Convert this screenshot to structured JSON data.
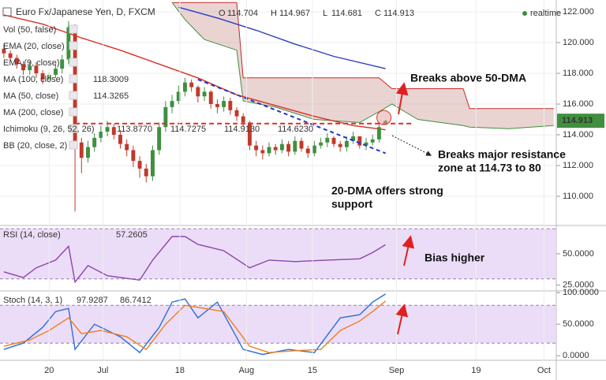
{
  "chart_data": [
    {
      "type": "candlestick",
      "title": "Euro Fx/Japanese Yen, D, FXCM",
      "status": "realtime",
      "ohlc_labels": [
        "O",
        "H",
        "L",
        "C"
      ],
      "xlim": [
        -0.6,
        85.4
      ],
      "ylim": [
        108.15,
        122.77
      ],
      "yticks": [
        {
          "value": 110,
          "label": "110.000"
        },
        {
          "value": 112,
          "label": "112.000"
        },
        {
          "value": 114,
          "label": "114.000"
        },
        {
          "value": 116,
          "label": "116.000"
        },
        {
          "value": 118,
          "label": "118.000"
        },
        {
          "value": 120,
          "label": "120.000"
        },
        {
          "value": 122,
          "label": "122.000"
        }
      ],
      "grid": true,
      "up_color": "#3f8f3f",
      "down_color": "#c0392b",
      "price_tag_color": "#3f8f3f",
      "open": [
        119.6,
        119.3,
        119.0,
        118.6,
        118.2,
        118.5,
        118.0,
        117.6,
        117.9,
        118.3,
        118.9,
        121.0,
        113.5,
        112.5,
        113.2,
        113.8,
        114.2,
        114.5,
        114.0,
        113.4,
        113.0,
        112.3,
        111.8,
        111.3,
        113.0,
        114.5,
        115.8,
        116.2,
        116.8,
        117.4,
        117.1,
        116.5,
        116.8,
        116.0,
        115.8,
        116.2,
        115.6,
        115.2,
        114.8,
        113.3,
        113.0,
        112.8,
        113.2,
        113.0,
        113.4,
        112.9,
        113.6,
        113.1,
        112.8,
        113.3,
        113.5,
        113.8,
        113.4,
        113.2,
        113.6,
        113.9,
        113.3,
        113.5,
        113.7,
        114.704
      ],
      "high": [
        119.9,
        119.5,
        119.2,
        118.8,
        118.8,
        118.7,
        118.2,
        118.1,
        118.6,
        119.2,
        121.4,
        121.2,
        113.8,
        113.6,
        114.1,
        114.6,
        114.9,
        114.7,
        114.3,
        113.7,
        113.3,
        112.6,
        112.1,
        113.3,
        114.8,
        116.2,
        116.6,
        117.2,
        117.7,
        117.6,
        117.2,
        117.1,
        116.9,
        116.3,
        116.5,
        116.4,
        115.8,
        115.4,
        114.9,
        113.6,
        113.3,
        113.5,
        113.4,
        113.7,
        113.6,
        113.9,
        113.8,
        113.3,
        113.6,
        113.8,
        114.1,
        113.9,
        113.6,
        113.9,
        114.2,
        113.9,
        113.8,
        114.0,
        114.7,
        114.967
      ],
      "low": [
        119.0,
        118.8,
        118.3,
        117.9,
        117.9,
        117.7,
        117.3,
        117.4,
        117.7,
        118.0,
        118.6,
        109.0,
        111.5,
        112.2,
        112.9,
        113.5,
        113.9,
        113.7,
        113.1,
        112.6,
        111.9,
        111.2,
        110.9,
        111.0,
        112.7,
        114.2,
        115.4,
        116.0,
        116.5,
        116.8,
        116.1,
        116.2,
        115.7,
        115.4,
        115.5,
        115.3,
        114.9,
        114.5,
        113.0,
        112.6,
        112.4,
        112.6,
        112.7,
        112.8,
        112.6,
        112.7,
        112.9,
        112.5,
        112.6,
        113.1,
        113.2,
        113.2,
        112.9,
        112.9,
        113.4,
        113.1,
        113.0,
        113.3,
        113.5,
        114.681
      ],
      "close": [
        119.3,
        119.0,
        118.6,
        118.2,
        118.5,
        118.0,
        117.6,
        117.9,
        118.3,
        118.9,
        121.0,
        113.5,
        112.5,
        113.2,
        113.8,
        114.2,
        114.5,
        114.0,
        113.4,
        113.0,
        112.3,
        111.8,
        111.3,
        113.0,
        114.5,
        115.8,
        116.2,
        116.8,
        117.4,
        117.1,
        116.5,
        116.8,
        116.0,
        115.8,
        116.2,
        115.6,
        115.2,
        114.8,
        113.3,
        113.0,
        112.8,
        113.2,
        113.0,
        113.4,
        112.9,
        113.6,
        113.1,
        112.8,
        113.3,
        113.5,
        113.8,
        113.4,
        113.2,
        113.6,
        113.9,
        113.3,
        113.5,
        113.7,
        114.5,
        114.913
      ],
      "series": [
        {
          "name": "MA (100, close)",
          "color": "#2a3ec0",
          "x": [
            27,
            33,
            39,
            45,
            51,
            59
          ],
          "values": [
            122.3,
            121.6,
            120.8,
            119.9,
            119.1,
            118.3009
          ]
        },
        {
          "name": "MA (50, close)",
          "color": "#d93025",
          "x": [
            0,
            6,
            12,
            18,
            24,
            30,
            36,
            42,
            48,
            54,
            59
          ],
          "values": [
            121.8,
            121.2,
            120.3,
            119.5,
            118.6,
            117.7,
            116.6,
            115.9,
            115.2,
            114.6,
            114.3265
          ]
        }
      ],
      "cloud": {
        "x": [
          26,
          28,
          31,
          36,
          37,
          42,
          48,
          55,
          58,
          60,
          64,
          71,
          72,
          78,
          85
        ],
        "span_a": [
          122.6,
          121.5,
          120.2,
          119.5,
          116.2,
          115.8,
          115.0,
          114.8,
          115.5,
          116.0,
          115.0,
          114.6,
          114.5,
          114.4,
          114.6
        ],
        "span_b": [
          122.6,
          122.6,
          122.6,
          122.6,
          117.7,
          117.7,
          117.7,
          117.7,
          117.7,
          117.0,
          117.0,
          117.0,
          115.7,
          115.7,
          115.7
        ],
        "span_a_color": "#3f8f3f",
        "span_b_color": "#c62828",
        "fill": "#b5706b"
      },
      "trendline": {
        "x": [
          30,
          59
        ],
        "values": [
          117.6,
          112.8
        ],
        "color": "#2233cc"
      },
      "resistance": {
        "x": [
          11,
          63
        ],
        "values": [
          114.73,
          114.73
        ],
        "color": "#d93025"
      },
      "studies": [
        {
          "label": "Vol (50, false)"
        },
        {
          "label": "EMA (20, close)"
        },
        {
          "label": "EMA (9, close)"
        },
        {
          "label": "MA (200, close)"
        },
        {
          "label": "Ichimoku (9, 26, 52, 26)",
          "readings": [
            "113.8770",
            "114.7275",
            "114.9130",
            "114.6230"
          ]
        },
        {
          "label": "BB (20, close, 2)"
        }
      ],
      "annotations": [
        {
          "lines": [
            "Breaks above 50-DMA"
          ]
        },
        {
          "lines": [
            "Breaks major resistance",
            "zone at 114.73 to 80"
          ]
        },
        {
          "lines": [
            "20-DMA offers strong",
            "support"
          ]
        }
      ]
    },
    {
      "type": "line",
      "xlim": [
        -0.6,
        85.4
      ],
      "ylim": [
        21,
        72
      ],
      "yticks": [
        {
          "value": 25,
          "label": "25.0000"
        },
        {
          "value": 50,
          "label": "50.0000"
        }
      ],
      "band": [
        30,
        70
      ],
      "band_color": "#e6d4f5",
      "series": [
        {
          "name": "RSI (14, close)",
          "color": "#8e44ad",
          "x": [
            0,
            3,
            5,
            8,
            10,
            11,
            13,
            16,
            21,
            23,
            26,
            28,
            30,
            34,
            38,
            41,
            45,
            50,
            55,
            57,
            59
          ],
          "values": [
            35.6,
            31,
            38.8,
            45,
            56,
            27.5,
            40.6,
            32.5,
            29,
            45,
            63.8,
            63.8,
            57.5,
            52.5,
            38.8,
            45,
            43.8,
            45,
            46,
            51,
            57.2605
          ]
        }
      ],
      "annotations": [
        {
          "lines": [
            "Bias higher"
          ]
        }
      ]
    },
    {
      "type": "line",
      "title": "Stoch (14, 3, 1)",
      "xlim": [
        -0.6,
        85.4
      ],
      "ylim": [
        -6,
        101.5
      ],
      "yticks": [
        {
          "value": 0,
          "label": "0.0000"
        },
        {
          "value": 50,
          "label": "50.0000"
        },
        {
          "value": 100,
          "label": "100.0000"
        }
      ],
      "xticks": [
        {
          "value": 7,
          "label": "20"
        },
        {
          "value": 15.3,
          "label": "Jul"
        },
        {
          "value": 27.2,
          "label": "18"
        },
        {
          "value": 37.5,
          "label": "Aug"
        },
        {
          "value": 47.7,
          "label": "15"
        },
        {
          "value": 60.7,
          "label": "Sep"
        },
        {
          "value": 73,
          "label": "19"
        },
        {
          "value": 83.5,
          "label": "Oct"
        }
      ],
      "band": [
        20,
        80
      ],
      "band_color": "#e6d4f5",
      "series": [
        {
          "color": "#2a6fdb",
          "x": [
            0,
            3,
            6,
            8,
            10,
            11,
            14,
            18,
            21,
            24,
            26,
            28,
            30,
            33,
            37,
            40,
            44,
            48,
            52,
            55,
            57,
            59
          ],
          "values": [
            10,
            20,
            45,
            70,
            75,
            10,
            50,
            30,
            5,
            45,
            85,
            90,
            60,
            85,
            10,
            2,
            10,
            5,
            60,
            65,
            85,
            97.9287
          ]
        },
        {
          "color": "#f07f1a",
          "x": [
            0,
            4,
            7,
            10,
            12,
            15,
            19,
            22,
            25,
            28,
            31,
            34,
            38,
            41,
            45,
            49,
            52,
            55,
            57,
            59
          ],
          "values": [
            15,
            25,
            40,
            60,
            35,
            40,
            30,
            10,
            50,
            80,
            75,
            70,
            15,
            5,
            8,
            10,
            40,
            55,
            70,
            86.7412
          ]
        }
      ]
    }
  ]
}
